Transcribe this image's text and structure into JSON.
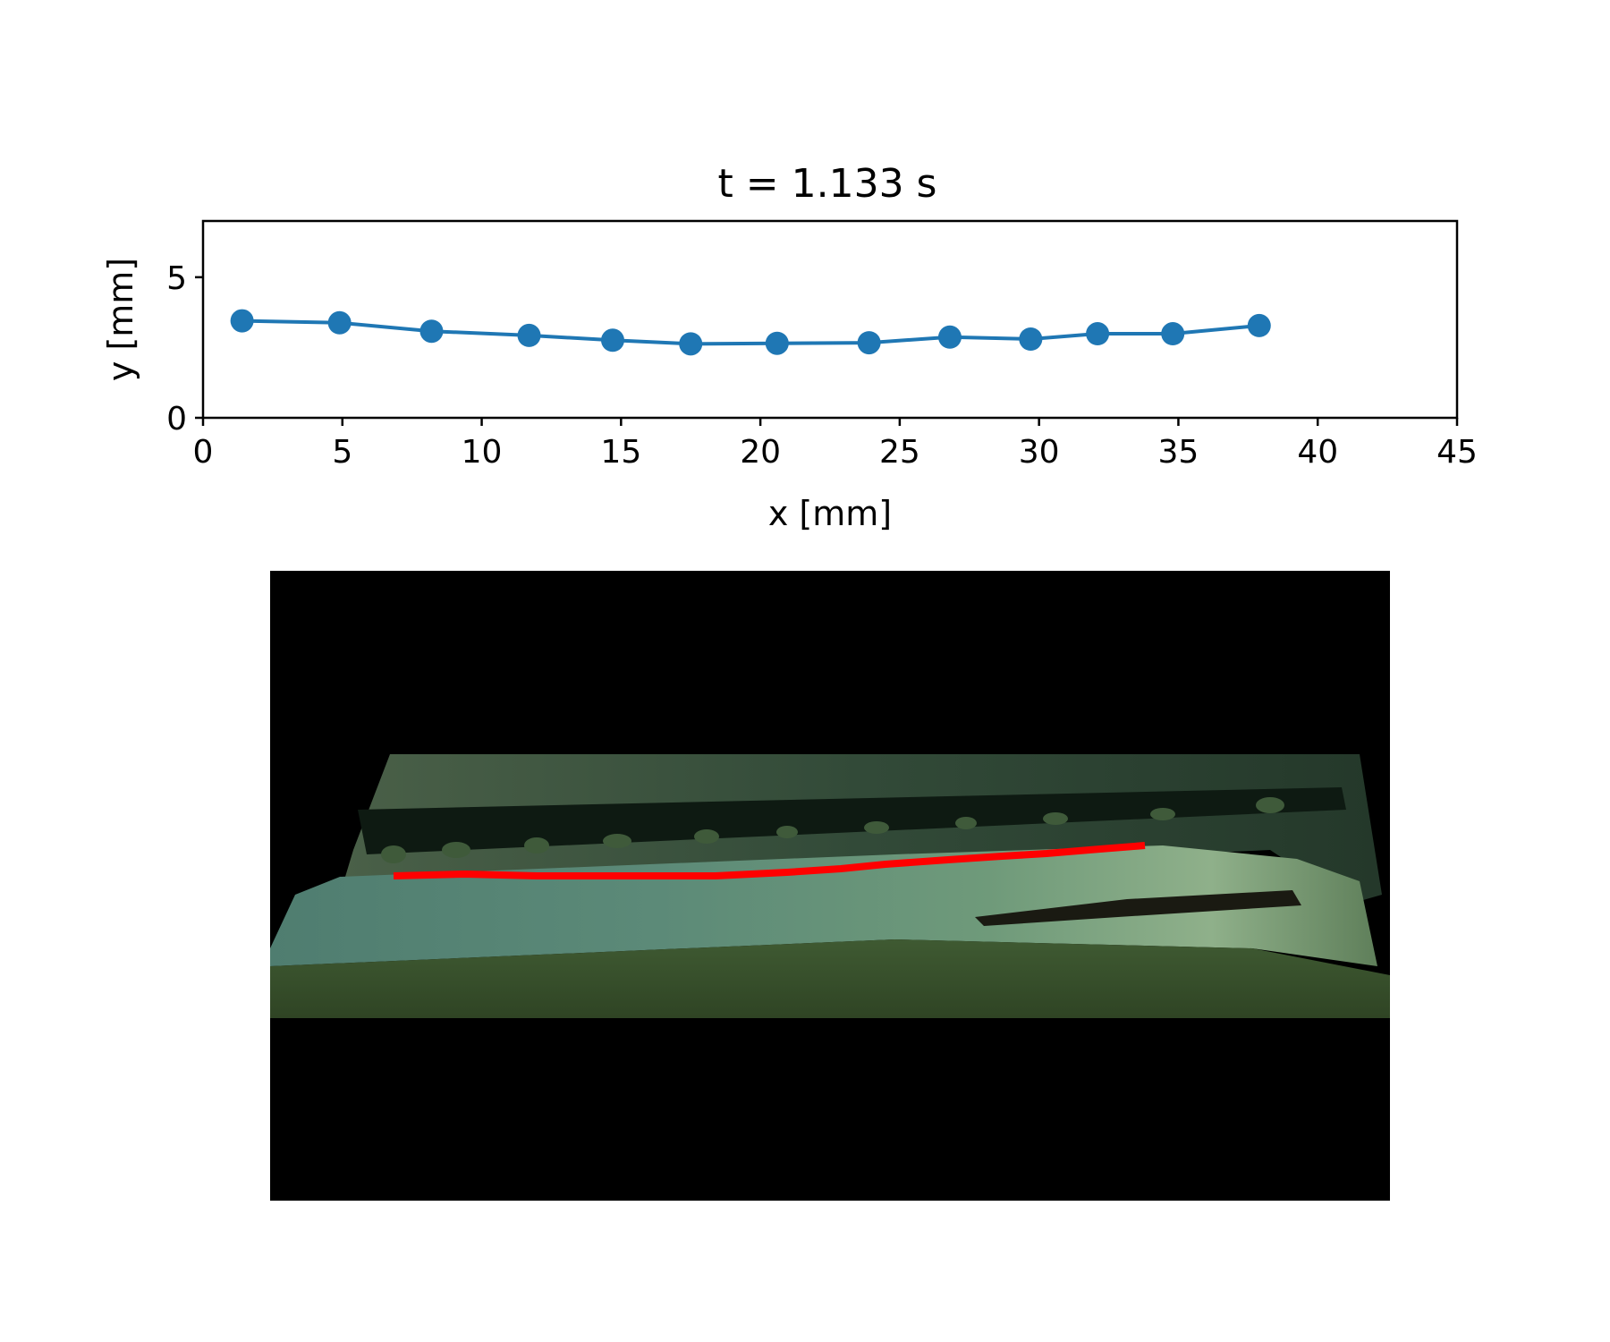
{
  "chart_data": {
    "type": "line",
    "title": "t = 1.133 s",
    "xlabel": "x [mm]",
    "ylabel": "y [mm]",
    "xlim": [
      0,
      45
    ],
    "ylim": [
      0,
      7
    ],
    "xticks": [
      0,
      5,
      10,
      15,
      20,
      25,
      30,
      35,
      40,
      45
    ],
    "yticks": [
      0,
      5
    ],
    "grid": false,
    "series": [
      {
        "color": "#1f77b4",
        "marker": "circle",
        "x": [
          1.4,
          4.9,
          8.2,
          11.7,
          14.7,
          17.5,
          20.6,
          23.9,
          26.8,
          29.7,
          32.1,
          34.8,
          37.9
        ],
        "y": [
          3.45,
          3.38,
          3.08,
          2.93,
          2.76,
          2.63,
          2.65,
          2.67,
          2.87,
          2.8,
          2.99,
          2.99,
          3.28
        ]
      }
    ]
  },
  "photo": {
    "overlay_color": "#ff0000",
    "background_color": "#000000"
  }
}
